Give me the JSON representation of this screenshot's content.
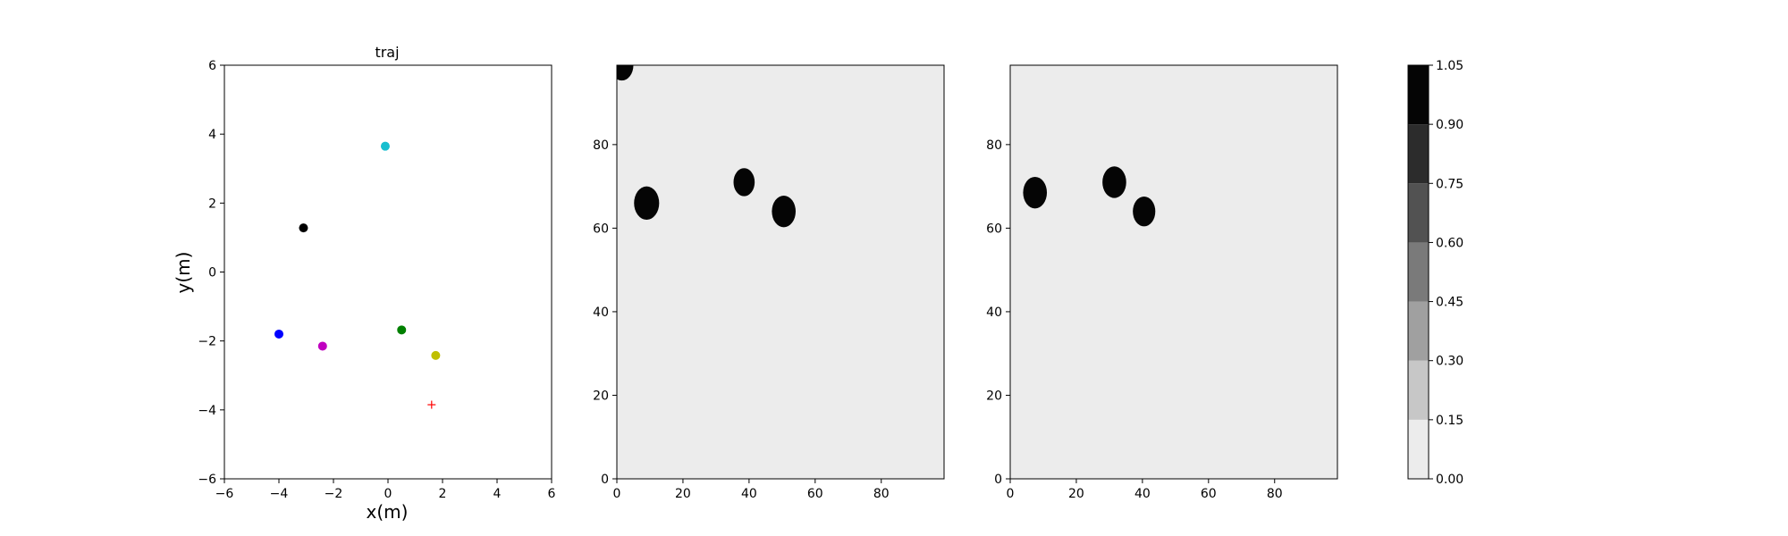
{
  "chart_data": [
    {
      "type": "scatter",
      "title": "traj",
      "xlabel": "x(m)",
      "ylabel": "y(m)",
      "xlim": [
        -6,
        6
      ],
      "ylim": [
        -6,
        6
      ],
      "xticks": [
        "−6",
        "−4",
        "−2",
        "0",
        "2",
        "4",
        "6"
      ],
      "yticks": [
        "−6",
        "−4",
        "−2",
        "0",
        "2",
        "4",
        "6"
      ],
      "grid": false,
      "points": [
        {
          "x": -0.1,
          "y": 3.65,
          "color": "#17becf",
          "marker": "circle"
        },
        {
          "x": -3.1,
          "y": 1.28,
          "color": "#000000",
          "marker": "circle"
        },
        {
          "x": -4.0,
          "y": -1.8,
          "color": "#0000ff",
          "marker": "circle"
        },
        {
          "x": -2.4,
          "y": -2.15,
          "color": "#c000c0",
          "marker": "circle"
        },
        {
          "x": 0.5,
          "y": -1.68,
          "color": "#008000",
          "marker": "circle"
        },
        {
          "x": 1.75,
          "y": -2.42,
          "color": "#bfbf00",
          "marker": "circle"
        },
        {
          "x": 1.6,
          "y": -3.85,
          "color": "#ff0000",
          "marker": "plus"
        }
      ]
    },
    {
      "type": "heatmap",
      "title": "",
      "xlim": [
        0,
        99
      ],
      "ylim": [
        0,
        99
      ],
      "xticks": [
        "0",
        "20",
        "40",
        "60",
        "80"
      ],
      "yticks": [
        "0",
        "20",
        "40",
        "60",
        "80"
      ],
      "background_value": 0.08,
      "blobs": [
        {
          "x": 1.5,
          "y": 99,
          "r": 3.5,
          "value": 1.0
        },
        {
          "x": 9,
          "y": 66,
          "r": 3.8,
          "value": 1.0
        },
        {
          "x": 38.5,
          "y": 71,
          "r": 3.2,
          "value": 1.0
        },
        {
          "x": 50.5,
          "y": 64,
          "r": 3.6,
          "value": 1.0
        }
      ]
    },
    {
      "type": "heatmap",
      "title": "",
      "xlim": [
        0,
        99
      ],
      "ylim": [
        0,
        99
      ],
      "xticks": [
        "0",
        "20",
        "40",
        "60",
        "80"
      ],
      "yticks": [
        "0",
        "20",
        "40",
        "60",
        "80"
      ],
      "background_value": 0.08,
      "blobs": [
        {
          "x": 7.5,
          "y": 68.5,
          "r": 3.6,
          "value": 1.0
        },
        {
          "x": 31.5,
          "y": 71,
          "r": 3.6,
          "value": 1.0
        },
        {
          "x": 40.5,
          "y": 64,
          "r": 3.4,
          "value": 1.0
        }
      ]
    }
  ],
  "colorbar": {
    "levels": [
      0.0,
      0.15,
      0.3,
      0.45,
      0.6,
      0.75,
      0.9,
      1.05
    ],
    "tick_labels": [
      "0.00",
      "0.15",
      "0.30",
      "0.45",
      "0.60",
      "0.75",
      "0.90",
      "1.05"
    ],
    "colors": [
      "#ececec",
      "#c7c7c7",
      "#a0a0a0",
      "#7a7a7a",
      "#525252",
      "#2c2c2c",
      "#050505"
    ]
  }
}
